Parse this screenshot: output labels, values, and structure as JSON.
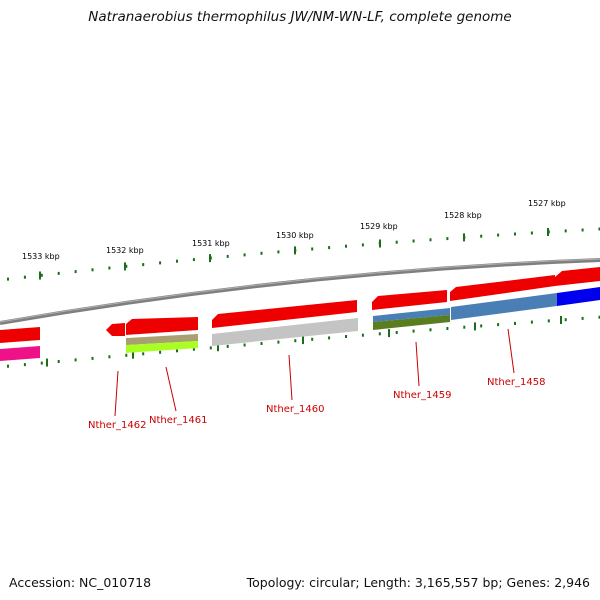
{
  "title": "Natranaerobius thermophilus JW/NM-WN-LF, complete genome",
  "footer": {
    "accession": "Accession: NC_010718",
    "summary": "Topology: circular; Length: 3,165,557 bp; Genes: 2,946"
  },
  "kbp_labels": [
    "1533 kbp",
    "1532 kbp",
    "1531 kbp",
    "1530 kbp",
    "1529 kbp",
    "1528 kbp",
    "1527 kbp"
  ],
  "gene_labels": [
    "Nther_1462",
    "Nther_1461",
    "Nther_1460",
    "Nther_1459",
    "Nther_1458"
  ],
  "colors": {
    "backbone": "#7f7f7f",
    "tick": "#1a6e1a",
    "cds": "#ee0000",
    "label": "#cc0000",
    "magenta": "#ee1188",
    "steelblue": "#4a7fb5",
    "blue": "#0000ee",
    "olive": "#5a7d1f",
    "khaki": "#a8a070",
    "lime": "#aaff22",
    "grey": "#c4c4c4"
  }
}
